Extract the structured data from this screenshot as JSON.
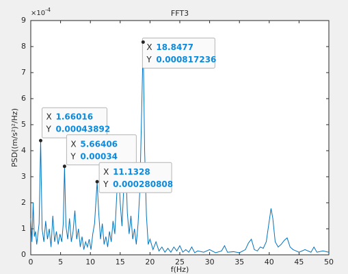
{
  "chart_data": {
    "type": "line",
    "title": "FFT3",
    "xlabel": "f(Hz)",
    "ylabel": "PSD((m/s²)²/Hz)",
    "y_multiplier": "×10",
    "y_exponent": "-4",
    "x": [
      0,
      0.2,
      0.4,
      0.6,
      0.8,
      1.0,
      1.2,
      1.4,
      1.66016,
      1.9,
      2.2,
      2.5,
      2.8,
      3.1,
      3.4,
      3.7,
      4.0,
      4.3,
      4.6,
      4.9,
      5.2,
      5.45,
      5.66406,
      5.9,
      6.2,
      6.5,
      6.8,
      7.1,
      7.4,
      7.7,
      8.0,
      8.3,
      8.6,
      8.9,
      9.2,
      9.5,
      9.8,
      10.1,
      10.4,
      10.7,
      11.1328,
      11.4,
      11.7,
      12.0,
      12.3,
      12.6,
      12.9,
      13.2,
      13.5,
      13.8,
      14.1,
      14.4,
      14.7,
      15.0,
      15.3,
      15.6,
      15.9,
      16.2,
      16.5,
      16.8,
      17.1,
      17.4,
      17.7,
      18.0,
      18.3,
      18.6,
      18.8477,
      19.1,
      19.4,
      19.7,
      20.0,
      20.5,
      21,
      21.5,
      22,
      22.5,
      23,
      23.5,
      24,
      24.5,
      25,
      25.5,
      26,
      26.5,
      27,
      27.5,
      28,
      29,
      30,
      31,
      32,
      32.5,
      33,
      34,
      35,
      36,
      36.5,
      37,
      37.5,
      38,
      38.5,
      39,
      39.5,
      40,
      40.3,
      40.6,
      41,
      41.5,
      42,
      42.5,
      43,
      43.5,
      44,
      44.5,
      45,
      46,
      47,
      47.5,
      48,
      49,
      50
    ],
    "series": [
      {
        "color": "#0072bd",
        "values": [
          1.4,
          0.5,
          2.0,
          0.7,
          0.9,
          0.4,
          0.8,
          1.2,
          4.3892,
          1.0,
          0.5,
          1.3,
          0.6,
          1.0,
          0.3,
          1.5,
          0.5,
          0.9,
          0.4,
          0.8,
          0.5,
          1.2,
          3.4,
          1.1,
          0.6,
          1.4,
          0.5,
          0.9,
          1.7,
          0.6,
          1.0,
          0.3,
          0.7,
          0.2,
          0.5,
          0.3,
          0.6,
          0.2,
          0.8,
          1.2,
          2.80808,
          1.6,
          0.6,
          1.2,
          0.4,
          0.7,
          0.3,
          0.9,
          0.5,
          1.3,
          0.8,
          2.2,
          3.5,
          2.0,
          1.1,
          2.6,
          3.7,
          1.6,
          0.8,
          1.5,
          0.6,
          1.0,
          0.4,
          1.2,
          2.5,
          5.5,
          8.17236,
          4.0,
          1.5,
          0.4,
          0.6,
          0.2,
          0.5,
          0.15,
          0.3,
          0.1,
          0.25,
          0.1,
          0.3,
          0.15,
          0.35,
          0.1,
          0.2,
          0.1,
          0.3,
          0.08,
          0.15,
          0.1,
          0.2,
          0.08,
          0.15,
          0.35,
          0.1,
          0.12,
          0.08,
          0.2,
          0.45,
          0.6,
          0.2,
          0.15,
          0.3,
          0.25,
          0.5,
          1.3,
          1.78,
          1.4,
          0.5,
          0.3,
          0.4,
          0.55,
          0.65,
          0.3,
          0.2,
          0.15,
          0.1,
          0.2,
          0.1,
          0.3,
          0.1,
          0.15,
          0.1
        ]
      }
    ],
    "xlim": [
      0,
      50
    ],
    "xticks": [
      0,
      5,
      10,
      15,
      20,
      25,
      30,
      35,
      40,
      45,
      50
    ],
    "ylim": [
      0,
      9
    ],
    "yticks": [
      0,
      1,
      2,
      3,
      4,
      5,
      6,
      7,
      8,
      9
    ],
    "tip_x_prefix": "X",
    "tip_y_prefix": "Y",
    "datatips": [
      {
        "x": 1.66016,
        "y": 4.3892,
        "y_label": "0.00043892"
      },
      {
        "x": 5.66406,
        "y": 3.4,
        "y_label": "0.00034"
      },
      {
        "x": 11.1328,
        "y": 2.80808,
        "y_label": "0.000280808"
      },
      {
        "x": 18.8477,
        "y": 8.17236,
        "y_label": "0.000817236"
      }
    ]
  }
}
